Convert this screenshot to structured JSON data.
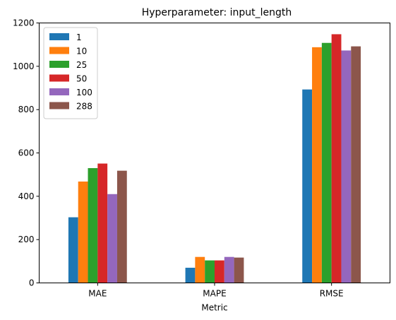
{
  "chart_data": {
    "type": "bar",
    "title": "Hyperparameter: input_length",
    "xlabel": "Metric",
    "ylabel": "",
    "categories": [
      "MAE",
      "MAPE",
      "RMSE"
    ],
    "ylim": [
      0,
      1200
    ],
    "yticks": [
      0,
      200,
      400,
      600,
      800,
      1000,
      1200
    ],
    "grid": false,
    "legend_position": "top-left",
    "series": [
      {
        "name": "1",
        "color": "#1f77b4",
        "values": [
          303,
          70,
          893
        ]
      },
      {
        "name": "10",
        "color": "#ff7f0e",
        "values": [
          468,
          120,
          1088
        ]
      },
      {
        "name": "25",
        "color": "#2ca02c",
        "values": [
          530,
          104,
          1108
        ]
      },
      {
        "name": "50",
        "color": "#d62728",
        "values": [
          551,
          104,
          1148
        ]
      },
      {
        "name": "100",
        "color": "#9467bd",
        "values": [
          410,
          120,
          1073
        ]
      },
      {
        "name": "288",
        "color": "#8c564b",
        "values": [
          518,
          117,
          1092
        ]
      }
    ]
  }
}
